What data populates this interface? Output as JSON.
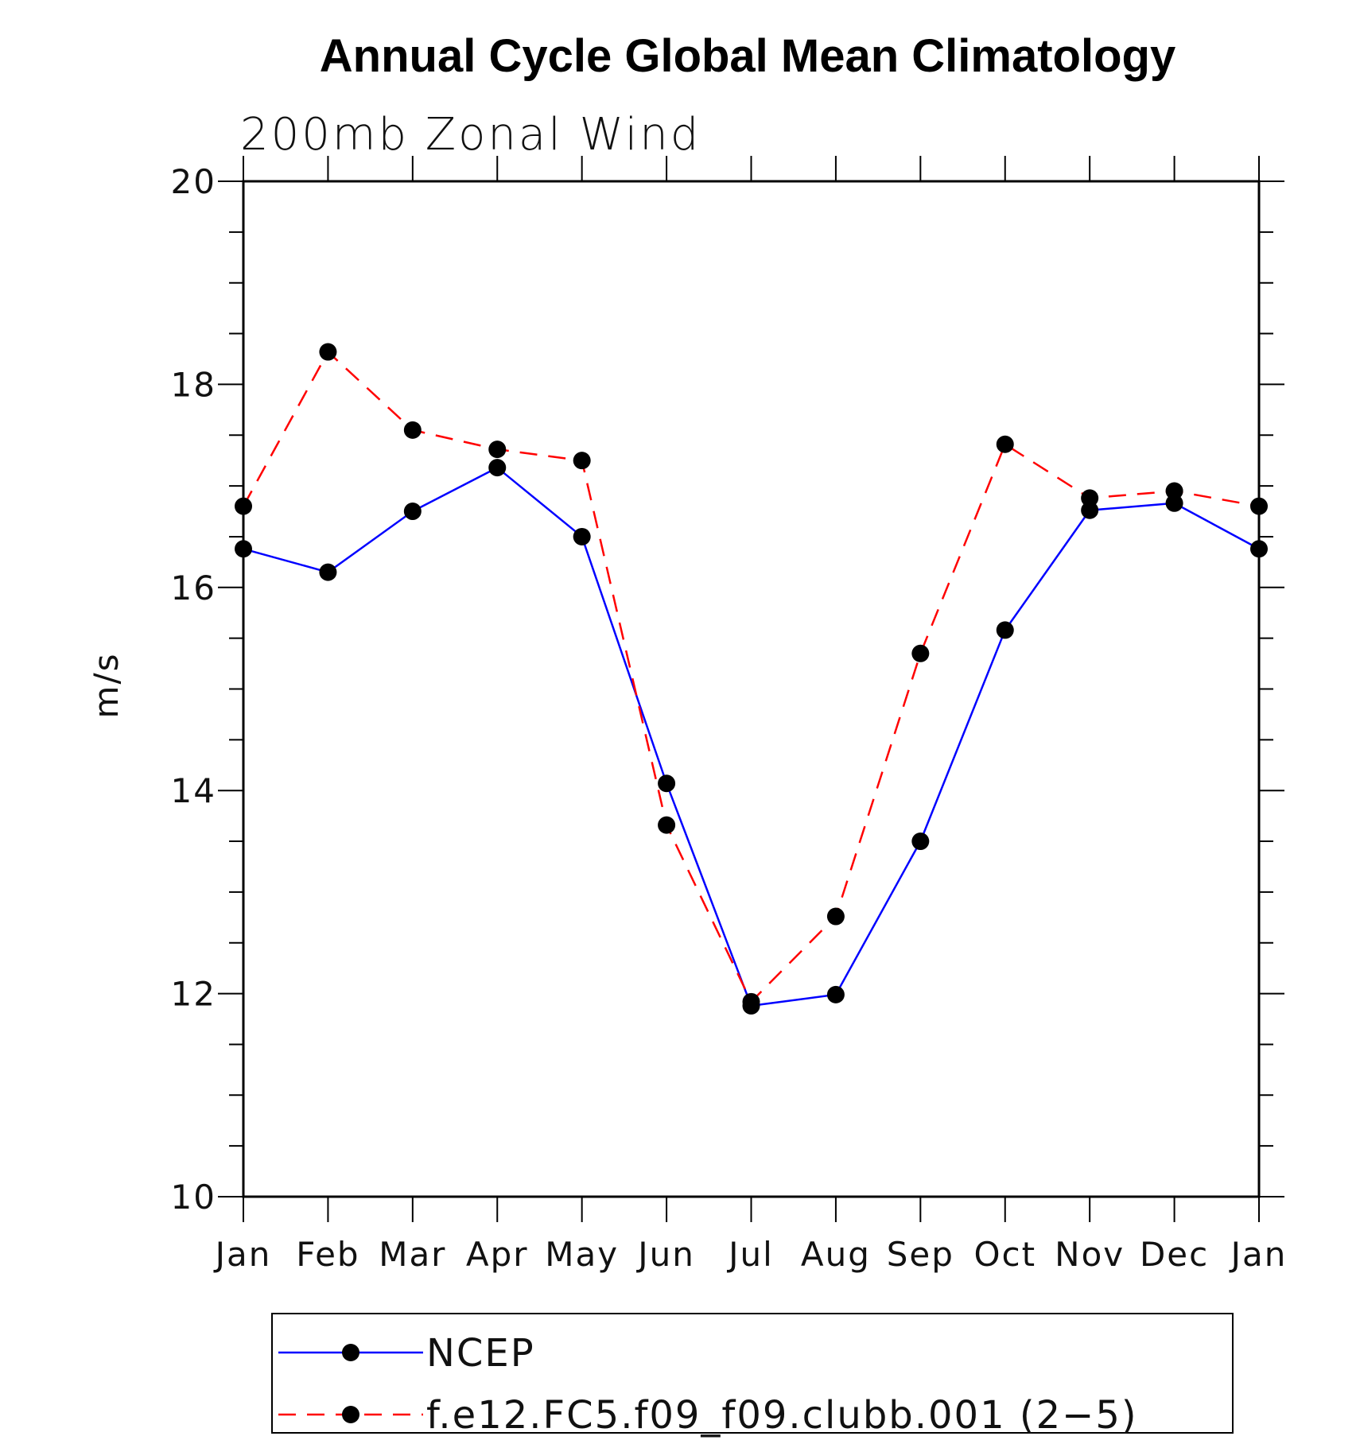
{
  "chart_data": {
    "type": "line",
    "title": "Annual Cycle Global Mean Climatology",
    "subtitle": "200mb Zonal Wind",
    "ylabel": "m/s",
    "xlabel": "",
    "categories": [
      "Jan",
      "Feb",
      "Mar",
      "Apr",
      "May",
      "Jun",
      "Jul",
      "Aug",
      "Sep",
      "Oct",
      "Nov",
      "Dec",
      "Jan"
    ],
    "ylim": [
      10,
      20
    ],
    "yticks": [
      "10",
      "12",
      "14",
      "16",
      "18",
      "20"
    ],
    "grid": false,
    "legend_position": "bottom",
    "series": [
      {
        "name": "NCEP",
        "color": "#0000ff",
        "line_style": "solid",
        "marker": "filled-circle",
        "values": [
          16.38,
          16.15,
          16.75,
          17.18,
          16.5,
          14.07,
          11.88,
          11.99,
          13.5,
          15.58,
          16.76,
          16.83,
          16.38
        ]
      },
      {
        "name": "f.e12.FC5.f09_f09.clubb.001 (2−5)",
        "color": "#ff0000",
        "line_style": "dashed",
        "marker": "filled-circle",
        "values": [
          16.8,
          18.32,
          17.55,
          17.36,
          17.25,
          13.66,
          11.92,
          12.76,
          15.35,
          17.41,
          16.88,
          16.95,
          16.8
        ]
      }
    ]
  }
}
